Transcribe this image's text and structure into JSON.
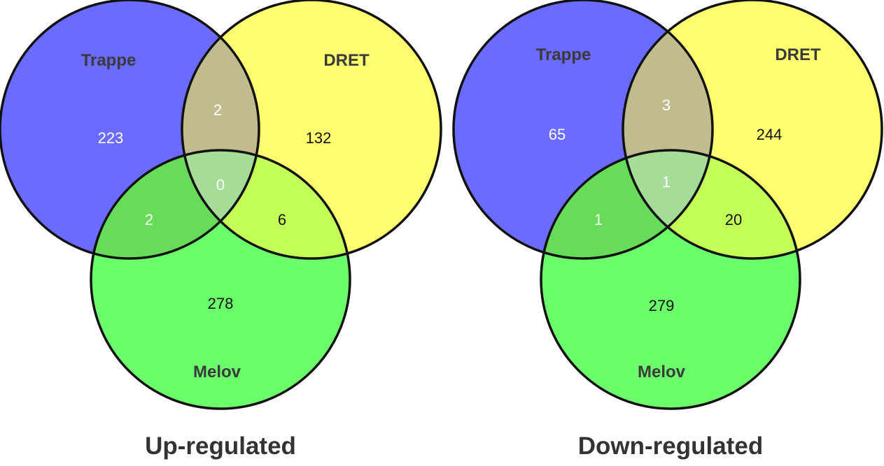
{
  "colors": {
    "trappe": "#6b6bff",
    "dret": "#ffff70",
    "melov": "#6cff6c",
    "trappe_dret": "#c0bc8e",
    "trappe_melov": "#66dc58",
    "dret_melov": "#c4ff58",
    "all_three": "#a4dc98",
    "outline": "#111111"
  },
  "panels": [
    {
      "title": "Up-regulated",
      "sets": {
        "trappe": "Trappe",
        "dret": "DRET",
        "melov": "Melov"
      },
      "counts": {
        "trappe_only": "223",
        "dret_only": "132",
        "melov_only": "278",
        "trappe_dret": "2",
        "trappe_melov": "2",
        "dret_melov": "6",
        "all_three": "0"
      }
    },
    {
      "title": "Down-regulated",
      "sets": {
        "trappe": "Trappe",
        "dret": "DRET",
        "melov": "Melov"
      },
      "counts": {
        "trappe_only": "65",
        "dret_only": "244",
        "melov_only": "279",
        "trappe_dret": "3",
        "trappe_melov": "1",
        "dret_melov": "20",
        "all_three": "1"
      }
    }
  ]
}
